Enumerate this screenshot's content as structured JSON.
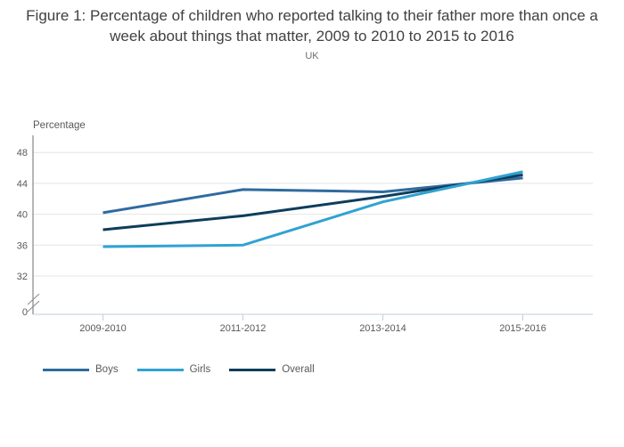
{
  "title": "Figure 1: Percentage of children who reported talking to their father more than once a week about things that matter, 2009 to 2010 to 2015 to 2016",
  "subtitle": "UK",
  "chart_data": {
    "type": "line",
    "title": "Figure 1: Percentage of children who reported talking to their father more than once a week about things that matter, 2009 to 2010 to 2015 to 2016",
    "subtitle": "UK",
    "ylabel": "Percentage",
    "xlabel": "",
    "categories": [
      "2009-2010",
      "2011-2012",
      "2013-2014",
      "2015-2016"
    ],
    "series": [
      {
        "name": "Boys",
        "color": "#2f6b9f",
        "values": [
          40.2,
          43.2,
          42.9,
          44.7
        ]
      },
      {
        "name": "Girls",
        "color": "#30a2d2",
        "values": [
          35.8,
          36.0,
          41.6,
          45.5
        ]
      },
      {
        "name": "Overall",
        "color": "#0d3d5c",
        "values": [
          38.0,
          39.8,
          42.3,
          45.1
        ]
      }
    ],
    "yticks": [
      0,
      32,
      36,
      40,
      44,
      48
    ],
    "ylim_displayed": [
      32,
      48
    ],
    "axis_break": true,
    "grid": true,
    "legend_position": "bottom",
    "colors": {
      "grid_line": "#e4e4e7",
      "y_axis_line": "#6d6e71",
      "x_axis_line": "#c2cde0",
      "tick_label": "#58595b",
      "break_mark": "#8a8a8a"
    }
  }
}
